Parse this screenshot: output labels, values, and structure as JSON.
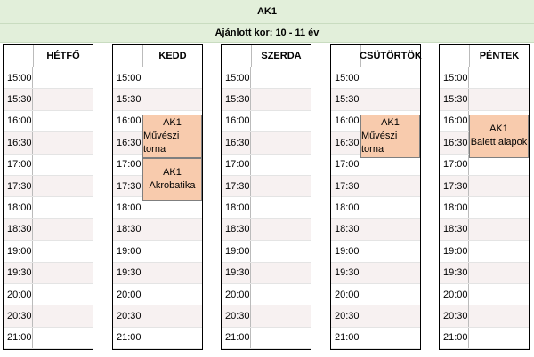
{
  "header": {
    "title": "AK1",
    "subtitle": "Ajánlott kor: 10 - 11 év"
  },
  "times": [
    "15:00",
    "15:30",
    "16:00",
    "16:30",
    "17:00",
    "17:30",
    "18:00",
    "18:30",
    "19:00",
    "19:30",
    "20:00",
    "20:30",
    "21:00"
  ],
  "days": [
    {
      "name": "HÉTFŐ",
      "cells": [
        null,
        null,
        null,
        null,
        null,
        null,
        null,
        null,
        null,
        null,
        null,
        null,
        null
      ]
    },
    {
      "name": "KEDD",
      "cells": [
        null,
        null,
        [
          "AK1",
          "Művészi torna"
        ],
        null,
        [
          "AK1",
          "Akrobatika"
        ],
        null,
        null,
        null,
        null,
        null,
        null,
        null,
        null
      ]
    },
    {
      "name": "SZERDA",
      "cells": [
        null,
        null,
        null,
        null,
        null,
        null,
        null,
        null,
        null,
        null,
        null,
        null,
        null
      ]
    },
    {
      "name": "CSÜTÖRTÖK",
      "cells": [
        null,
        null,
        [
          "AK1",
          "Művészi torna"
        ],
        null,
        null,
        null,
        null,
        null,
        null,
        null,
        null,
        null,
        null
      ]
    },
    {
      "name": "PÉNTEK",
      "cells": [
        null,
        null,
        [
          "AK1",
          "Balett alapok"
        ],
        null,
        null,
        null,
        null,
        null,
        null,
        null,
        null,
        null,
        null
      ]
    }
  ]
}
